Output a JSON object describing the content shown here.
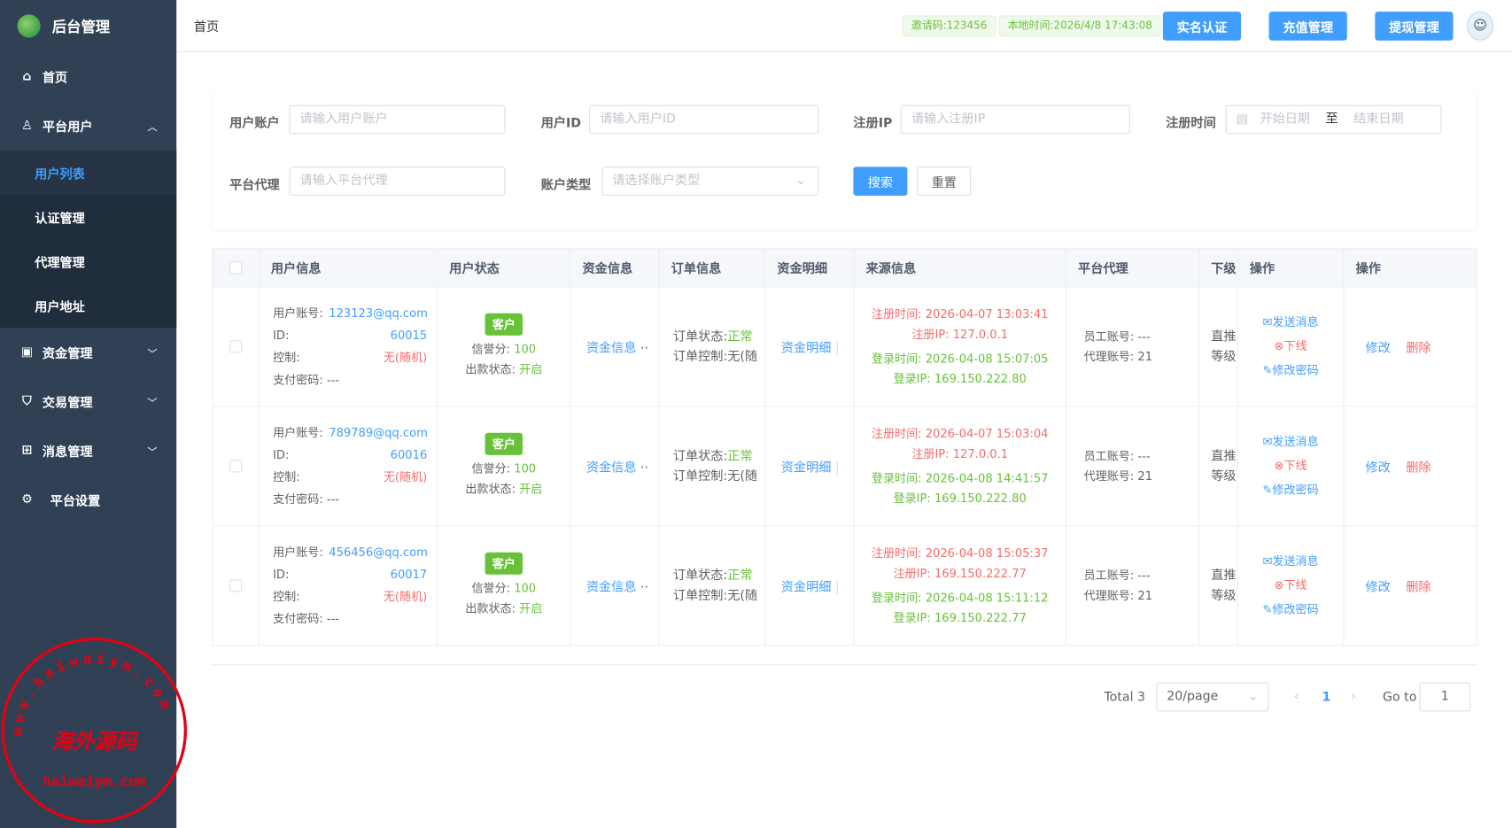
{
  "app": {
    "title": "后台管理"
  },
  "sidebar": {
    "items": [
      {
        "label": "首页",
        "icon": "home-icon"
      },
      {
        "label": "平台用户",
        "icon": "user-icon",
        "expanded": true,
        "children": [
          "用户列表",
          "认证管理",
          "代理管理",
          "用户地址"
        ]
      },
      {
        "label": "资金管理",
        "icon": "wallet-icon"
      },
      {
        "label": "交易管理",
        "icon": "bag-icon"
      },
      {
        "label": "消息管理",
        "icon": "gift-icon"
      },
      {
        "label": "平台设置",
        "icon": "gear-icon"
      }
    ],
    "active": "用户列表"
  },
  "header": {
    "breadcrumb": "首页",
    "invite": "邀请码:123456",
    "local_time": "本地时间:2026/4/8 17:43:08",
    "buttons": [
      "实名认证",
      "充值管理",
      "提现管理"
    ]
  },
  "filters": {
    "account": {
      "label": "用户账户",
      "placeholder": "请输入用户账户"
    },
    "uid": {
      "label": "用户ID",
      "placeholder": "请输入用户ID"
    },
    "ip": {
      "label": "注册IP",
      "placeholder": "请输入注册IP"
    },
    "time": {
      "label": "注册时间",
      "start": "开始日期",
      "sep": "至",
      "end": "结束日期"
    },
    "agent": {
      "label": "平台代理",
      "placeholder": "请输入平台代理"
    },
    "type": {
      "label": "账户类型",
      "placeholder": "请选择账户类型"
    },
    "search": "搜索",
    "reset": "重置"
  },
  "table": {
    "headers": [
      "用户信息",
      "用户状态",
      "资金信息",
      "订单信息",
      "资金明细",
      "来源信息",
      "平台代理",
      "下级",
      "操作",
      "操作"
    ],
    "labels": {
      "account": "用户账号:",
      "id": "ID:",
      "control": "控制:",
      "paypwd": "支付密码: ---",
      "credit": "信誉分: ",
      "withdraw": "出款状态: ",
      "fund": "资金信息",
      "order_status": "订单状态:",
      "order_ctrl": "订单控制:无(随",
      "detail": "资金明细",
      "reg_time": "注册时间: ",
      "reg_ip": "注册IP: ",
      "login_time": "登录时间: ",
      "login_ip": "登录IP: ",
      "staff": "员工账号: ---",
      "agent": "代理账号: 21",
      "sub1": "直推",
      "sub2": "等级",
      "send": "发送消息",
      "offline": "下线",
      "chpwd": "修改密码",
      "edit": "修改",
      "delete": "删除"
    },
    "rows": [
      {
        "account": "123123@qq.com",
        "id": "60015",
        "control": "无(随机)",
        "status": "客户",
        "credit": "100",
        "withdraw": "开启",
        "order_status": "正常",
        "reg_time": "2026-04-07 13:03:41",
        "reg_ip": "127.0.0.1",
        "login_time": "2026-04-08 15:07:05",
        "login_ip": "169.150.222.80"
      },
      {
        "account": "789789@qq.com",
        "id": "60016",
        "control": "无(随机)",
        "status": "客户",
        "credit": "100",
        "withdraw": "开启",
        "order_status": "正常",
        "reg_time": "2026-04-07 15:03:04",
        "reg_ip": "127.0.0.1",
        "login_time": "2026-04-08 14:41:57",
        "login_ip": "169.150.222.80"
      },
      {
        "account": "456456@qq.com",
        "id": "60017",
        "control": "无(随机)",
        "status": "客户",
        "credit": "100",
        "withdraw": "开启",
        "order_status": "正常",
        "reg_time": "2026-04-08 15:05:37",
        "reg_ip": "169.150.222.77",
        "login_time": "2026-04-08 15:11:12",
        "login_ip": "169.150.222.77"
      }
    ]
  },
  "pagination": {
    "total": "Total 3",
    "page_size": "20/page",
    "current": "1",
    "goto": "Go to",
    "goto_value": "1"
  },
  "watermark": {
    "text": "海外源码",
    "url": "haiwaiym.com",
    "ring": "www.haiwaiym.com"
  },
  "colors": {
    "sidebar": "#304156",
    "primary": "#409eff",
    "success": "#67c23a",
    "danger": "#f56c6c"
  }
}
